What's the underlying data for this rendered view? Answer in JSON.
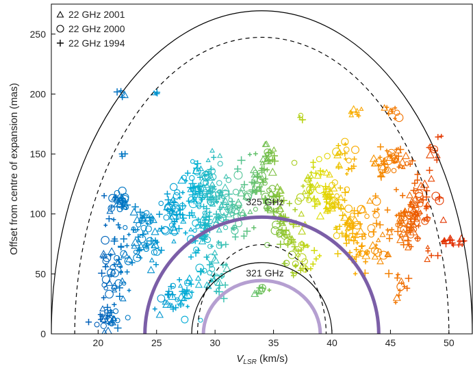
{
  "chart_data": {
    "type": "scatter",
    "xlabel_main": "V",
    "xlabel_sub": "LSR",
    "xlabel_unit": " (km/s)",
    "ylabel": "Offset from centre of expansion (mas)",
    "xlim": [
      16,
      52
    ],
    "ylim": [
      0,
      275
    ],
    "x_ticks": [
      "20",
      "25",
      "30",
      "35",
      "40",
      "45",
      "50"
    ],
    "y_ticks": [
      "0",
      "50",
      "100",
      "150",
      "200",
      "250"
    ],
    "legend_position": "top-left",
    "series": [
      {
        "name": "22 GHz 2001",
        "marker": "triangle"
      },
      {
        "name": "22 GHz 2000",
        "marker": "circle"
      },
      {
        "name": "22 GHz 1994",
        "marker": "plus"
      }
    ],
    "shells": [
      {
        "type": "solid",
        "center": 34,
        "half_width": 18,
        "height": 270,
        "color": "#000000"
      },
      {
        "type": "dashed",
        "center": 34,
        "half_width": 16,
        "height": 248,
        "color": "#000000"
      },
      {
        "type": "solid",
        "center": 34,
        "half_width": 6,
        "height": 60,
        "color": "#000000"
      },
      {
        "type": "dashed",
        "center": 34,
        "half_width": 5.5,
        "height": 75,
        "color": "#000000"
      },
      {
        "label": "325 GHz",
        "type": "thick",
        "center": 34,
        "half_width": 10,
        "height": 98,
        "color": "#7b5ea7"
      },
      {
        "label": "321 GHz",
        "type": "thick",
        "center": 34,
        "half_width": 5,
        "height": 45,
        "color": "#b59fd1"
      }
    ],
    "clusters": [
      {
        "x": 21.8,
        "y": 110,
        "sx": 0.7,
        "sy": 8,
        "n": 30
      },
      {
        "x": 21.5,
        "y": 60,
        "sx": 1.0,
        "sy": 25,
        "n": 60
      },
      {
        "x": 21.0,
        "y": 10,
        "sx": 0.9,
        "sy": 8,
        "n": 30
      },
      {
        "x": 22.0,
        "y": 200,
        "sx": 0.3,
        "sy": 2,
        "n": 5
      },
      {
        "x": 22.3,
        "y": 150,
        "sx": 0.2,
        "sy": 2,
        "n": 3
      },
      {
        "x": 24.0,
        "y": 80,
        "sx": 1.0,
        "sy": 20,
        "n": 60
      },
      {
        "x": 25.0,
        "y": 200,
        "sx": 0.2,
        "sy": 3,
        "n": 4
      },
      {
        "x": 26.5,
        "y": 100,
        "sx": 1.0,
        "sy": 15,
        "n": 50
      },
      {
        "x": 26.5,
        "y": 30,
        "sx": 1.2,
        "sy": 15,
        "n": 40
      },
      {
        "x": 28.5,
        "y": 125,
        "sx": 1.2,
        "sy": 15,
        "n": 50
      },
      {
        "x": 29.0,
        "y": 85,
        "sx": 1.2,
        "sy": 15,
        "n": 50
      },
      {
        "x": 30.0,
        "y": 120,
        "sx": 1.0,
        "sy": 18,
        "n": 50
      },
      {
        "x": 30.0,
        "y": 45,
        "sx": 1.0,
        "sy": 12,
        "n": 30
      },
      {
        "x": 31.5,
        "y": 100,
        "sx": 1.2,
        "sy": 15,
        "n": 50
      },
      {
        "x": 33.5,
        "y": 130,
        "sx": 1.2,
        "sy": 15,
        "n": 40
      },
      {
        "x": 34.5,
        "y": 150,
        "sx": 0.4,
        "sy": 10,
        "n": 20
      },
      {
        "x": 35.0,
        "y": 110,
        "sx": 0.8,
        "sy": 10,
        "n": 30
      },
      {
        "x": 36.0,
        "y": 90,
        "sx": 1.0,
        "sy": 15,
        "n": 40
      },
      {
        "x": 34.0,
        "y": 35,
        "sx": 0.5,
        "sy": 3,
        "n": 8
      },
      {
        "x": 37.5,
        "y": 65,
        "sx": 1.0,
        "sy": 10,
        "n": 30
      },
      {
        "x": 37.5,
        "y": 180,
        "sx": 0.2,
        "sy": 3,
        "n": 4
      },
      {
        "x": 38.5,
        "y": 125,
        "sx": 1.0,
        "sy": 15,
        "n": 40
      },
      {
        "x": 40.0,
        "y": 110,
        "sx": 1.0,
        "sy": 12,
        "n": 40
      },
      {
        "x": 41.0,
        "y": 145,
        "sx": 0.8,
        "sy": 10,
        "n": 20
      },
      {
        "x": 41.5,
        "y": 85,
        "sx": 1.0,
        "sy": 15,
        "n": 40
      },
      {
        "x": 42.0,
        "y": 185,
        "sx": 0.4,
        "sy": 6,
        "n": 8
      },
      {
        "x": 43.5,
        "y": 80,
        "sx": 1.2,
        "sy": 25,
        "n": 50
      },
      {
        "x": 44.0,
        "y": 140,
        "sx": 0.5,
        "sy": 10,
        "n": 15
      },
      {
        "x": 45.0,
        "y": 185,
        "sx": 0.5,
        "sy": 5,
        "n": 10
      },
      {
        "x": 45.5,
        "y": 145,
        "sx": 1.0,
        "sy": 8,
        "n": 30
      },
      {
        "x": 46.5,
        "y": 90,
        "sx": 1.0,
        "sy": 15,
        "n": 50
      },
      {
        "x": 46.0,
        "y": 40,
        "sx": 0.5,
        "sy": 15,
        "n": 12
      },
      {
        "x": 47.5,
        "y": 110,
        "sx": 1.2,
        "sy": 20,
        "n": 50
      },
      {
        "x": 48.5,
        "y": 155,
        "sx": 0.5,
        "sy": 10,
        "n": 10
      },
      {
        "x": 50.5,
        "y": 77,
        "sx": 0.8,
        "sy": 3,
        "n": 15
      },
      {
        "x": 48.5,
        "y": 65,
        "sx": 0.3,
        "sy": 5,
        "n": 5
      }
    ]
  }
}
